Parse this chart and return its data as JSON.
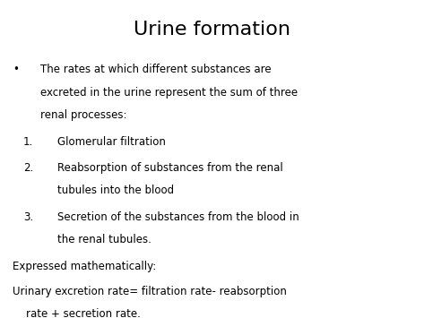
{
  "title": "Urine formation",
  "title_fontsize": 16,
  "bg_color": "#ffffff",
  "text_color": "#000000",
  "bullet_char": "•",
  "bullet_line1": "The rates at which different substances are",
  "bullet_line2": "excreted in the urine represent the sum of three",
  "bullet_line3": "renal processes:",
  "num1_label": "1.",
  "num1_line1": "Glomerular filtration",
  "num2_label": "2.",
  "num2_line1": "Reabsorption of substances from the renal",
  "num2_line2": "tubules into the blood",
  "num3_label": "3.",
  "num3_line1": "Secretion of the substances from the blood in",
  "num3_line2": "the renal tubules.",
  "footer1": "Expressed mathematically:",
  "footer2_line1": "Urinary excretion rate= filtration rate- reabsorption",
  "footer2_line2": "    rate + secretion rate.",
  "body_fontsize": 8.5,
  "fig_width": 4.73,
  "fig_height": 3.55,
  "dpi": 100
}
